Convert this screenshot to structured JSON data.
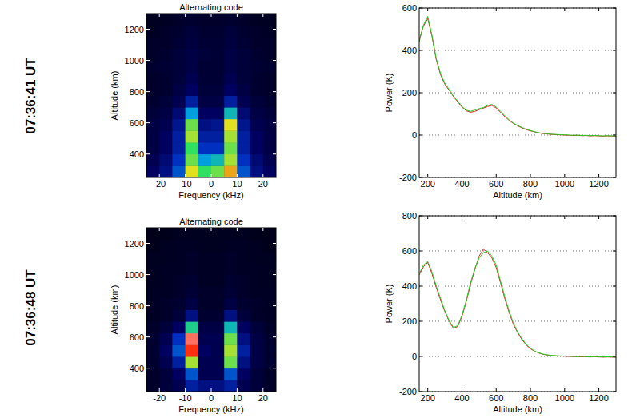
{
  "row_labels": [
    "07:36:41 UT",
    "07:36:48 UT"
  ],
  "chart_data": [
    {
      "type": "heatmap",
      "title": "Alternating code",
      "x_label": "Frequency (kHz)",
      "y_label": "Altitude (km)",
      "xlim": [
        -25,
        25
      ],
      "ylim": [
        250,
        1300
      ],
      "xticks": [
        -20,
        -10,
        0,
        10,
        20
      ],
      "yticks": [
        400,
        600,
        800,
        1000,
        1200
      ],
      "x_edges": [
        -25,
        -20,
        -15,
        -10,
        -5,
        0,
        5,
        10,
        15,
        20,
        25
      ],
      "y_edges": [
        250,
        325,
        400,
        475,
        550,
        625,
        700,
        775,
        850,
        925,
        1000,
        1075,
        1150,
        1225,
        1300
      ],
      "zlim": [
        0,
        1
      ],
      "cells": [
        [
          0.15,
          0.2,
          0.35,
          0.75,
          0.6,
          0.65,
          0.8,
          0.35,
          0.2,
          0.15
        ],
        [
          0.12,
          0.18,
          0.3,
          0.65,
          0.45,
          0.5,
          0.7,
          0.3,
          0.18,
          0.12
        ],
        [
          0.1,
          0.15,
          0.25,
          0.6,
          0.3,
          0.3,
          0.65,
          0.25,
          0.15,
          0.1
        ],
        [
          0.1,
          0.15,
          0.25,
          0.7,
          0.25,
          0.25,
          0.7,
          0.25,
          0.15,
          0.1
        ],
        [
          0.1,
          0.12,
          0.22,
          0.65,
          0.2,
          0.22,
          0.75,
          0.22,
          0.12,
          0.1
        ],
        [
          0.08,
          0.1,
          0.18,
          0.45,
          0.15,
          0.15,
          0.5,
          0.18,
          0.1,
          0.08
        ],
        [
          0.06,
          0.08,
          0.12,
          0.25,
          0.1,
          0.1,
          0.25,
          0.12,
          0.08,
          0.06
        ],
        [
          0.05,
          0.06,
          0.1,
          0.15,
          0.08,
          0.08,
          0.15,
          0.1,
          0.06,
          0.05
        ],
        [
          0.05,
          0.06,
          0.08,
          0.12,
          0.07,
          0.07,
          0.12,
          0.08,
          0.06,
          0.05
        ],
        [
          0.06,
          0.07,
          0.08,
          0.1,
          0.07,
          0.07,
          0.1,
          0.08,
          0.07,
          0.06
        ],
        [
          0.05,
          0.06,
          0.08,
          0.1,
          0.08,
          0.07,
          0.1,
          0.08,
          0.06,
          0.05
        ],
        [
          0.05,
          0.05,
          0.07,
          0.09,
          0.07,
          0.07,
          0.09,
          0.07,
          0.05,
          0.05
        ],
        [
          0.04,
          0.05,
          0.06,
          0.08,
          0.06,
          0.06,
          0.08,
          0.06,
          0.05,
          0.04
        ],
        [
          0.03,
          0.04,
          0.05,
          0.06,
          0.05,
          0.05,
          0.06,
          0.05,
          0.04,
          0.03
        ]
      ]
    },
    {
      "type": "line",
      "x_label": "Altitude (km)",
      "y_label": "Power (K)",
      "xlim": [
        150,
        1300
      ],
      "ylim": [
        -200,
        600
      ],
      "xticks": [
        200,
        400,
        600,
        800,
        1000,
        1200
      ],
      "yticks": [
        -200,
        0,
        200,
        400,
        600
      ],
      "grid": true,
      "x": [
        150,
        175,
        200,
        225,
        250,
        275,
        300,
        325,
        350,
        375,
        400,
        425,
        450,
        475,
        500,
        525,
        550,
        575,
        600,
        625,
        650,
        675,
        700,
        725,
        750,
        775,
        800,
        825,
        850,
        875,
        900,
        925,
        950,
        975,
        1000,
        1025,
        1050,
        1075,
        1100,
        1125,
        1150,
        1175,
        1200,
        1225,
        1250,
        1275,
        1300
      ],
      "series": [
        {
          "color": "#e02020",
          "values": [
            450,
            515,
            550,
            465,
            355,
            285,
            240,
            212,
            182,
            158,
            132,
            115,
            108,
            112,
            120,
            127,
            135,
            140,
            128,
            108,
            88,
            70,
            55,
            44,
            34,
            26,
            20,
            15,
            10,
            7,
            5,
            3,
            2,
            1,
            0,
            -1,
            -2,
            -1,
            -3,
            -2,
            -4,
            -3,
            -4,
            -5,
            -4,
            -5,
            -6
          ]
        },
        {
          "color": "#20d020",
          "values": [
            440,
            520,
            560,
            470,
            360,
            290,
            245,
            215,
            185,
            160,
            135,
            118,
            112,
            118,
            125,
            130,
            140,
            145,
            132,
            112,
            92,
            72,
            57,
            46,
            36,
            28,
            21,
            16,
            11,
            8,
            6,
            4,
            3,
            2,
            1,
            0,
            -1,
            0,
            -2,
            -1,
            -3,
            -2,
            -3,
            -4,
            -3,
            -4,
            -5
          ]
        }
      ]
    },
    {
      "type": "heatmap",
      "title": "Alternating code",
      "x_label": "Frequency (kHz)",
      "y_label": "Altitude (km)",
      "xlim": [
        -25,
        25
      ],
      "ylim": [
        250,
        1300
      ],
      "xticks": [
        -20,
        -10,
        0,
        10,
        20
      ],
      "yticks": [
        400,
        600,
        800,
        1000,
        1200
      ],
      "x_edges": [
        -25,
        -20,
        -15,
        -10,
        -5,
        0,
        5,
        10,
        15,
        20,
        25
      ],
      "y_edges": [
        250,
        325,
        400,
        475,
        550,
        625,
        700,
        775,
        850,
        925,
        1000,
        1075,
        1150,
        1225,
        1300
      ],
      "zlim": [
        0,
        1
      ],
      "cells": [
        [
          0.05,
          0.08,
          0.12,
          0.25,
          0.2,
          0.2,
          0.25,
          0.12,
          0.08,
          0.05
        ],
        [
          0.05,
          0.08,
          0.15,
          0.35,
          0.12,
          0.12,
          0.35,
          0.15,
          0.08,
          0.05
        ],
        [
          0.06,
          0.12,
          0.25,
          0.7,
          0.12,
          0.12,
          0.65,
          0.2,
          0.1,
          0.06
        ],
        [
          0.06,
          0.15,
          0.35,
          0.9,
          0.15,
          0.12,
          0.7,
          0.25,
          0.1,
          0.06
        ],
        [
          0.06,
          0.12,
          0.3,
          0.95,
          0.12,
          0.12,
          0.65,
          0.2,
          0.1,
          0.06
        ],
        [
          0.05,
          0.08,
          0.15,
          0.55,
          0.1,
          0.1,
          0.5,
          0.15,
          0.08,
          0.05
        ],
        [
          0.04,
          0.05,
          0.08,
          0.2,
          0.06,
          0.06,
          0.2,
          0.08,
          0.05,
          0.04
        ],
        [
          0.04,
          0.05,
          0.06,
          0.1,
          0.05,
          0.05,
          0.1,
          0.06,
          0.05,
          0.04
        ],
        [
          0.04,
          0.04,
          0.05,
          0.07,
          0.05,
          0.05,
          0.07,
          0.05,
          0.04,
          0.04
        ],
        [
          0.03,
          0.04,
          0.05,
          0.06,
          0.04,
          0.04,
          0.06,
          0.05,
          0.04,
          0.03
        ],
        [
          0.03,
          0.04,
          0.04,
          0.05,
          0.04,
          0.04,
          0.05,
          0.04,
          0.04,
          0.03
        ],
        [
          0.03,
          0.03,
          0.04,
          0.05,
          0.04,
          0.04,
          0.05,
          0.04,
          0.03,
          0.03
        ],
        [
          0.02,
          0.03,
          0.04,
          0.04,
          0.03,
          0.03,
          0.04,
          0.04,
          0.03,
          0.02
        ],
        [
          0.02,
          0.02,
          0.03,
          0.03,
          0.03,
          0.03,
          0.03,
          0.03,
          0.02,
          0.02
        ]
      ]
    },
    {
      "type": "line",
      "x_label": "Altitude (km)",
      "y_label": "Power (K)",
      "xlim": [
        150,
        1300
      ],
      "ylim": [
        -200,
        800
      ],
      "xticks": [
        200,
        400,
        600,
        800,
        1000,
        1200
      ],
      "yticks": [
        -200,
        0,
        200,
        400,
        600,
        800
      ],
      "grid": true,
      "x": [
        150,
        175,
        200,
        225,
        250,
        275,
        300,
        325,
        350,
        375,
        400,
        425,
        450,
        475,
        500,
        525,
        550,
        575,
        600,
        625,
        650,
        675,
        700,
        725,
        750,
        775,
        800,
        825,
        850,
        875,
        900,
        925,
        950,
        975,
        1000,
        1025,
        1050,
        1075,
        1100,
        1125,
        1150,
        1175,
        1200,
        1225,
        1250,
        1275,
        1300
      ],
      "series": [
        {
          "color": "#e02020",
          "values": [
            465,
            510,
            535,
            470,
            392,
            322,
            255,
            200,
            160,
            170,
            228,
            312,
            410,
            495,
            570,
            610,
            590,
            560,
            505,
            420,
            330,
            252,
            184,
            136,
            96,
            66,
            44,
            29,
            19,
            12,
            8,
            5,
            3,
            2,
            1,
            0,
            -1,
            -1,
            -2,
            -2,
            -3,
            -2,
            -3,
            -4,
            -3,
            -4,
            -5
          ]
        },
        {
          "color": "#20d020",
          "values": [
            470,
            520,
            540,
            480,
            400,
            330,
            260,
            205,
            165,
            175,
            235,
            320,
            420,
            500,
            560,
            590,
            600,
            570,
            520,
            430,
            340,
            260,
            190,
            140,
            100,
            70,
            46,
            31,
            20,
            13,
            9,
            6,
            4,
            3,
            2,
            1,
            0,
            -1,
            0,
            -1,
            -2,
            -1,
            -2,
            -3,
            -2,
            -3,
            -4
          ]
        }
      ]
    }
  ]
}
